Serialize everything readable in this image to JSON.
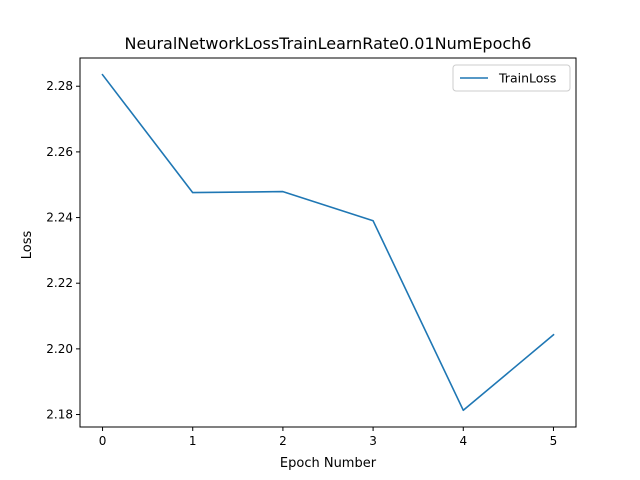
{
  "chart_data": {
    "type": "line",
    "title": "NeuralNetworkLossTrainLearnRate0.01NumEpoch6",
    "xlabel": "Epoch Number",
    "ylabel": "Loss",
    "x": [
      0,
      1,
      2,
      3,
      4,
      5
    ],
    "series": [
      {
        "name": "TrainLoss",
        "color": "#1f77b4",
        "values": [
          2.2835,
          2.2476,
          2.2479,
          2.239,
          2.1813,
          2.2043
        ]
      }
    ],
    "xlim": [
      -0.25,
      5.25
    ],
    "ylim": [
      2.1762,
      2.2886
    ],
    "xticks": [
      0,
      1,
      2,
      3,
      4,
      5
    ],
    "xtick_labels": [
      "0",
      "1",
      "2",
      "3",
      "4",
      "5"
    ],
    "yticks": [
      2.18,
      2.2,
      2.22,
      2.24,
      2.26,
      2.28
    ],
    "ytick_labels": [
      "2.18",
      "2.20",
      "2.22",
      "2.24",
      "2.26",
      "2.28"
    ],
    "grid": false,
    "legend": "top-right"
  }
}
